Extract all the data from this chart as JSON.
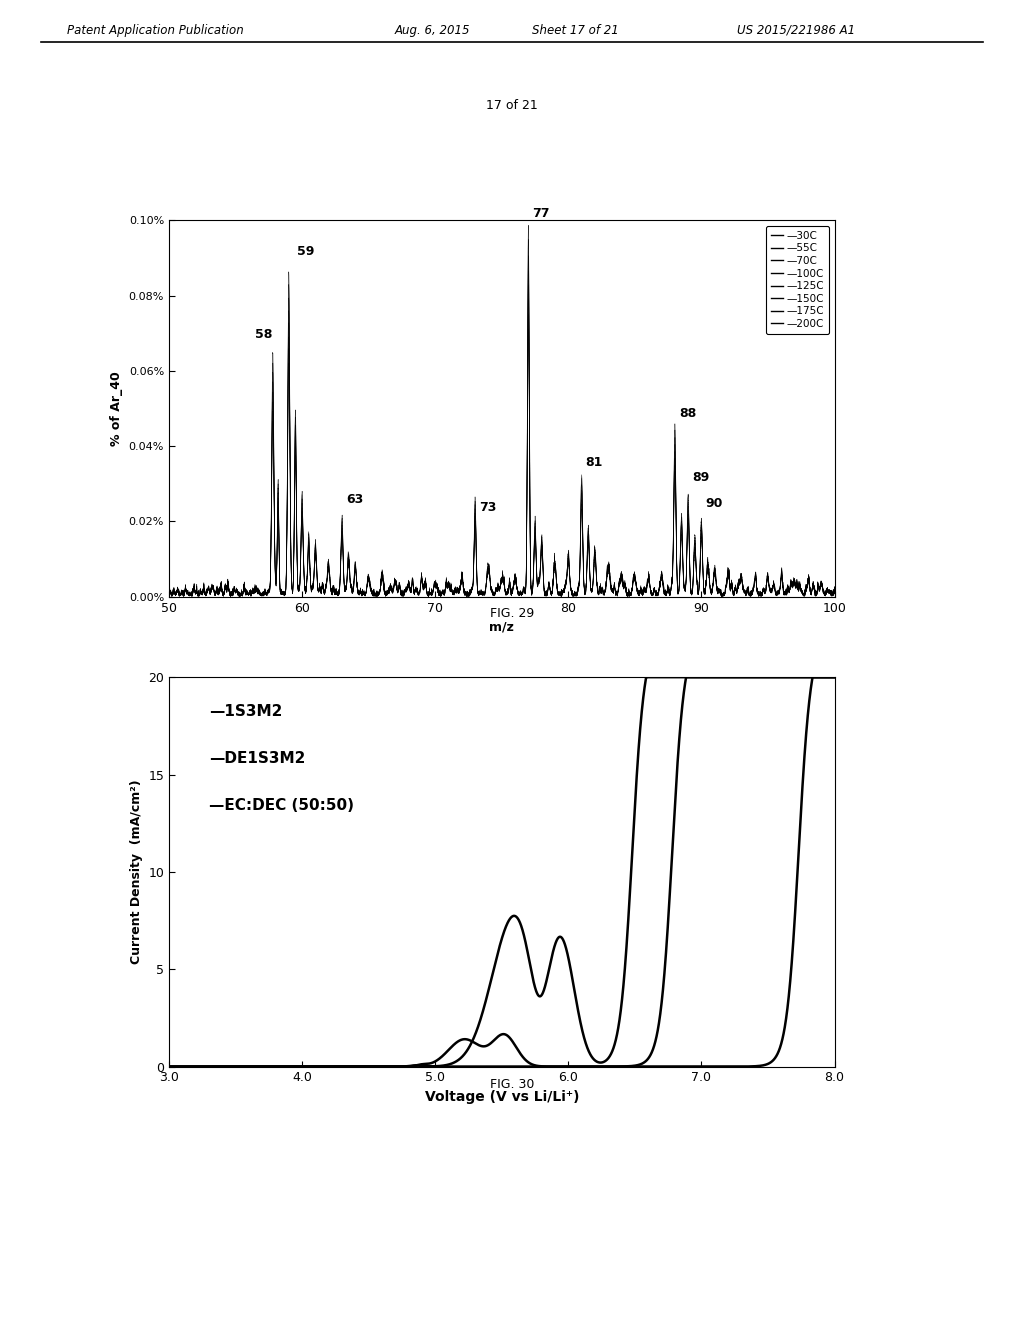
{
  "page_counter": "17 of 21",
  "fig29_title": "FIG. 29",
  "fig30_title": "FIG. 30",
  "fig29": {
    "xlabel": "m/z",
    "ylabel": "% of Ar_40",
    "xlim": [
      50,
      100
    ],
    "ylim": [
      0.0,
      0.1
    ],
    "yticks": [
      0.0,
      0.02,
      0.04,
      0.06,
      0.08,
      0.1
    ],
    "ytick_labels": [
      "0.00%",
      "0.02%",
      "0.04%",
      "0.06%",
      "0.08%",
      "0.10%"
    ],
    "xticks": [
      50,
      60,
      70,
      80,
      90,
      100
    ],
    "legend_entries": [
      "30C",
      "55C",
      "70C",
      "100C",
      "125C",
      "150C",
      "175C",
      "200C"
    ]
  },
  "fig30": {
    "xlabel": "Voltage (V vs Li/Li⁺)",
    "ylabel": "Current Density  (mA/cm²)",
    "xlim": [
      3.0,
      8.0
    ],
    "ylim": [
      0,
      20
    ],
    "yticks": [
      0,
      5,
      10,
      15,
      20
    ],
    "xticks": [
      3.0,
      4.0,
      5.0,
      6.0,
      7.0,
      8.0
    ],
    "xtick_labels": [
      "3.0",
      "4.0",
      "5.0",
      "6.0",
      "7.0",
      "8.0"
    ],
    "legend_entries": [
      "1S3M2",
      "DE1S3M2",
      "EC:DEC (50:50)"
    ]
  },
  "background_color": "#ffffff"
}
